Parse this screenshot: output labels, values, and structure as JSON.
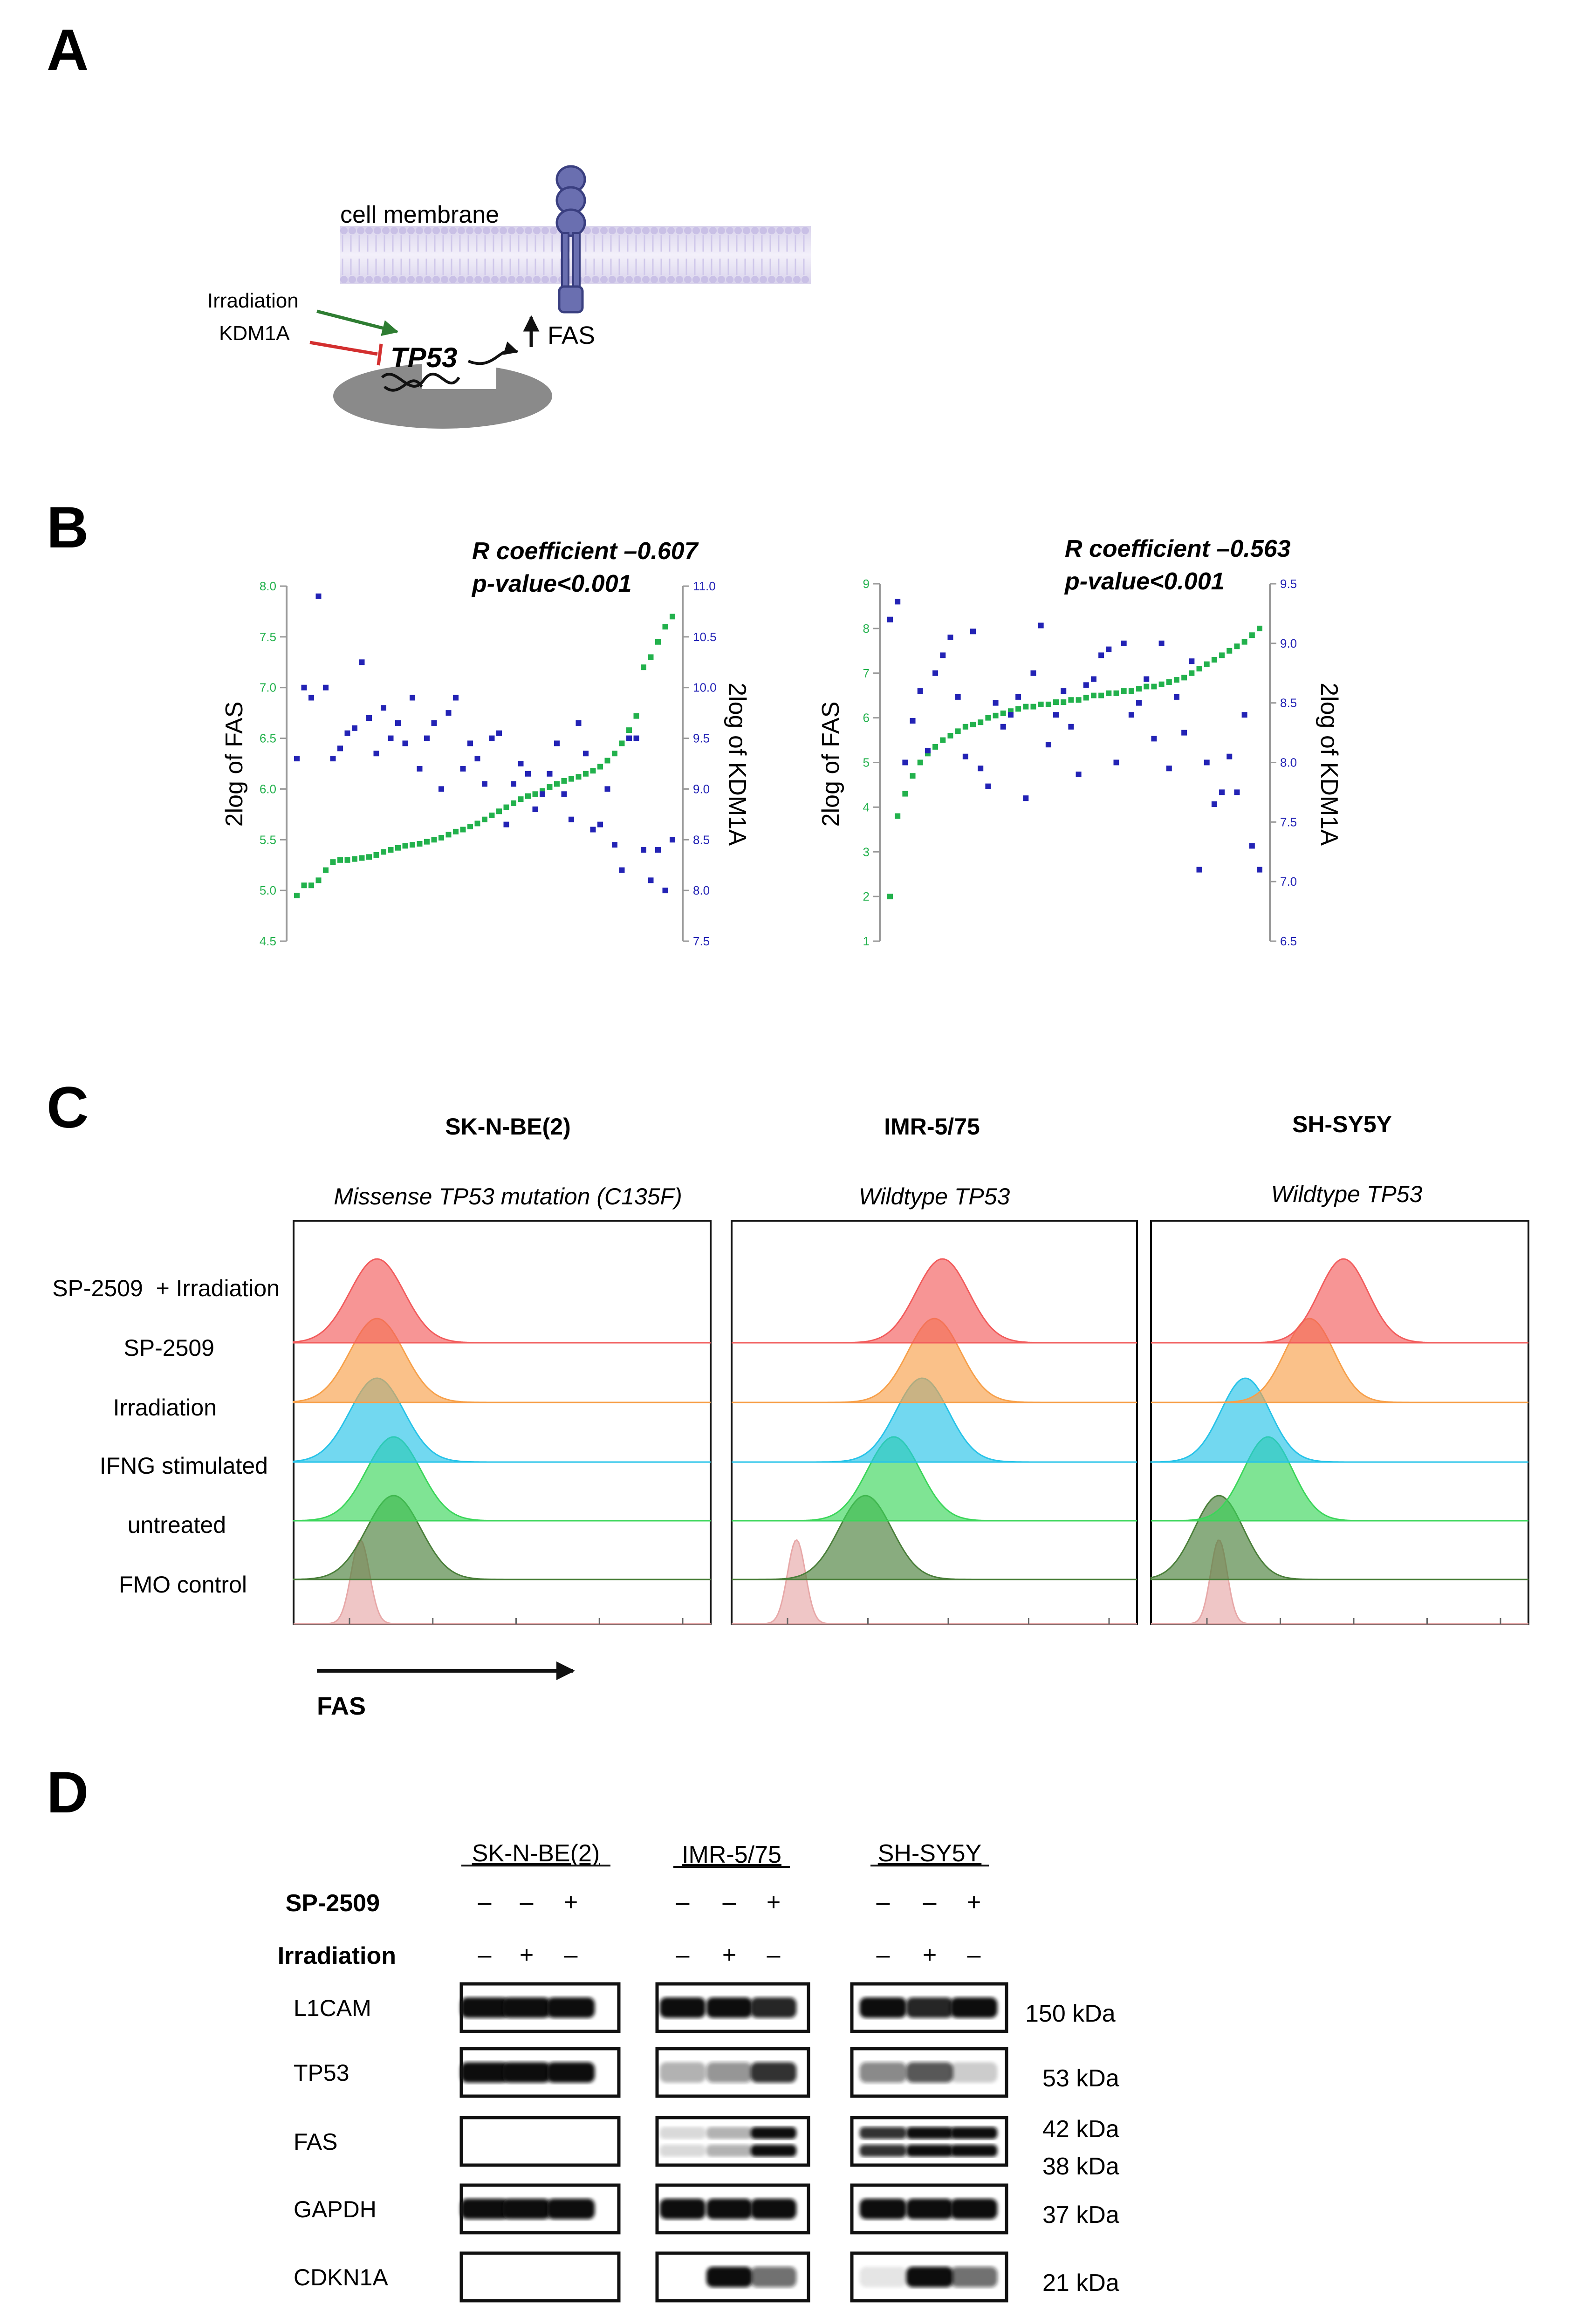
{
  "panels": {
    "a": "A",
    "b": "B",
    "c": "C",
    "d": "D"
  },
  "panel_a": {
    "membrane_label": "cell membrane",
    "irradiation_label": "Irradiation",
    "kdm1a_label": "KDM1A",
    "tp53_label": "TP53",
    "fas_label": "FAS",
    "colors": {
      "activation": "#2e7d32",
      "inhibition": "#d32f2f",
      "receptor": "#6a6fb0",
      "nucleus": "#8a8a8a"
    }
  },
  "chart_data": [
    {
      "type": "scatter",
      "title": "",
      "stat_r": "R coefficient –0.607",
      "stat_p": "p-value<0.001",
      "ylabel_left": "2log of FAS",
      "ylabel_right": "2log of KDM1A",
      "left_axis": {
        "ticks": [
          "4.5",
          "5.0",
          "5.5",
          "6.0",
          "6.5",
          "7.0",
          "7.5",
          "8.0"
        ],
        "range": [
          4.5,
          8.0
        ]
      },
      "right_axis": {
        "ticks": [
          "7.5",
          "8.0",
          "8.5",
          "9.0",
          "9.5",
          "10.0",
          "10.5",
          "11.0"
        ],
        "range": [
          7.5,
          11.0
        ]
      },
      "series": [
        {
          "name": "FAS",
          "color": "#22b14c",
          "values": [
            4.95,
            5.05,
            5.05,
            5.1,
            5.2,
            5.28,
            5.3,
            5.3,
            5.31,
            5.32,
            5.33,
            5.35,
            5.38,
            5.4,
            5.42,
            5.44,
            5.45,
            5.46,
            5.48,
            5.5,
            5.52,
            5.55,
            5.58,
            5.6,
            5.63,
            5.66,
            5.7,
            5.74,
            5.78,
            5.82,
            5.86,
            5.9,
            5.93,
            5.95,
            5.98,
            6.02,
            6.05,
            6.08,
            6.1,
            6.12,
            6.15,
            6.18,
            6.22,
            6.28,
            6.35,
            6.45,
            6.58,
            6.72,
            7.2,
            7.3,
            7.45,
            7.6,
            7.7
          ]
        },
        {
          "name": "KDM1A",
          "color": "#2323b5",
          "values": [
            9.3,
            10.0,
            9.9,
            10.9,
            10.0,
            9.3,
            9.4,
            9.55,
            9.6,
            10.25,
            9.7,
            9.35,
            9.8,
            9.5,
            9.65,
            9.45,
            9.9,
            9.2,
            9.5,
            9.65,
            9.0,
            9.75,
            9.9,
            9.2,
            9.45,
            9.3,
            9.05,
            9.5,
            9.55,
            8.65,
            9.05,
            9.25,
            9.15,
            8.8,
            8.95,
            9.15,
            9.45,
            8.95,
            8.7,
            9.65,
            9.35,
            8.6,
            8.65,
            9.0,
            8.45,
            8.2,
            9.5,
            9.5,
            8.4,
            8.1,
            8.4,
            8.0,
            8.5
          ]
        }
      ]
    },
    {
      "type": "scatter",
      "title": "",
      "stat_r": "R coefficient –0.563",
      "stat_p": "p-value<0.001",
      "ylabel_left": "2log of FAS",
      "ylabel_right": "2log of KDM1A",
      "left_axis": {
        "ticks": [
          "1",
          "2",
          "3",
          "4",
          "5",
          "6",
          "7",
          "8",
          "9"
        ],
        "range": [
          1,
          9
        ]
      },
      "right_axis": {
        "ticks": [
          "6.5",
          "7.0",
          "7.5",
          "8.0",
          "8.5",
          "9.0",
          "9.5"
        ],
        "range": [
          6.5,
          9.5
        ]
      },
      "series": [
        {
          "name": "FAS",
          "color": "#22b14c",
          "values": [
            2.0,
            3.8,
            4.3,
            4.7,
            5.0,
            5.2,
            5.35,
            5.5,
            5.6,
            5.7,
            5.8,
            5.85,
            5.9,
            6.0,
            6.05,
            6.1,
            6.15,
            6.2,
            6.25,
            6.25,
            6.3,
            6.3,
            6.35,
            6.35,
            6.4,
            6.4,
            6.45,
            6.5,
            6.5,
            6.55,
            6.55,
            6.6,
            6.6,
            6.65,
            6.7,
            6.7,
            6.75,
            6.8,
            6.85,
            6.9,
            7.0,
            7.1,
            7.2,
            7.3,
            7.4,
            7.5,
            7.6,
            7.7,
            7.85,
            8.0
          ]
        },
        {
          "name": "KDM1A",
          "color": "#2323b5",
          "values": [
            9.2,
            9.35,
            8.0,
            8.35,
            8.6,
            8.1,
            8.75,
            8.9,
            9.05,
            8.55,
            8.05,
            9.1,
            7.95,
            7.8,
            8.5,
            8.3,
            8.4,
            8.55,
            7.7,
            8.75,
            9.15,
            8.15,
            8.4,
            8.6,
            8.3,
            7.9,
            8.65,
            8.7,
            8.9,
            8.95,
            8.0,
            9.0,
            8.4,
            8.5,
            8.7,
            8.2,
            9.0,
            7.95,
            8.55,
            8.25,
            8.85,
            7.1,
            8.0,
            7.65,
            7.75,
            8.05,
            7.75,
            8.4,
            7.3,
            7.1
          ]
        }
      ]
    }
  ],
  "panel_c": {
    "cell_lines": [
      {
        "name": "SK-N-BE(2)",
        "status": "Missense TP53 mutation (C135F)"
      },
      {
        "name": "IMR-5/75",
        "status": "Wildtype TP53"
      },
      {
        "name": "SH-SY5Y",
        "status": "Wildtype TP53"
      }
    ],
    "conditions": [
      "SP-2509  + Irradiation",
      "SP-2509",
      "Irradiation",
      "IFNG stimulated",
      "untreated",
      "FMO control"
    ],
    "colors": [
      "#f25c5c",
      "#f7a04a",
      "#27c3e8",
      "#3bd65a",
      "#4a7f3a",
      "#e7a8a8"
    ],
    "axis_label": "FAS",
    "histogram_peaks": [
      [
        0.2,
        0.2,
        0.2,
        0.24,
        0.24,
        0.16
      ],
      [
        0.52,
        0.5,
        0.47,
        0.4,
        0.33,
        0.16
      ],
      [
        0.51,
        0.42,
        0.25,
        0.31,
        0.18,
        0.18
      ]
    ]
  },
  "panel_d": {
    "cell_lines": [
      "SK-N-BE(2)",
      "IMR-5/75",
      "SH-SY5Y"
    ],
    "treatments": [
      {
        "label": "SP-2509",
        "signs": [
          "–",
          "–",
          "+"
        ]
      },
      {
        "label": "Irradiation",
        "signs": [
          "–",
          "+",
          "–"
        ]
      }
    ],
    "blots": [
      {
        "protein": "L1CAM",
        "kda": "150 kDa"
      },
      {
        "protein": "TP53",
        "kda": "53 kDa"
      },
      {
        "protein": "FAS",
        "kda": "42 kDa",
        "kda2": "38 kDa"
      },
      {
        "protein": "GAPDH",
        "kda": "37 kDa"
      },
      {
        "protein": "CDKN1A",
        "kda": "21 kDa"
      }
    ]
  }
}
